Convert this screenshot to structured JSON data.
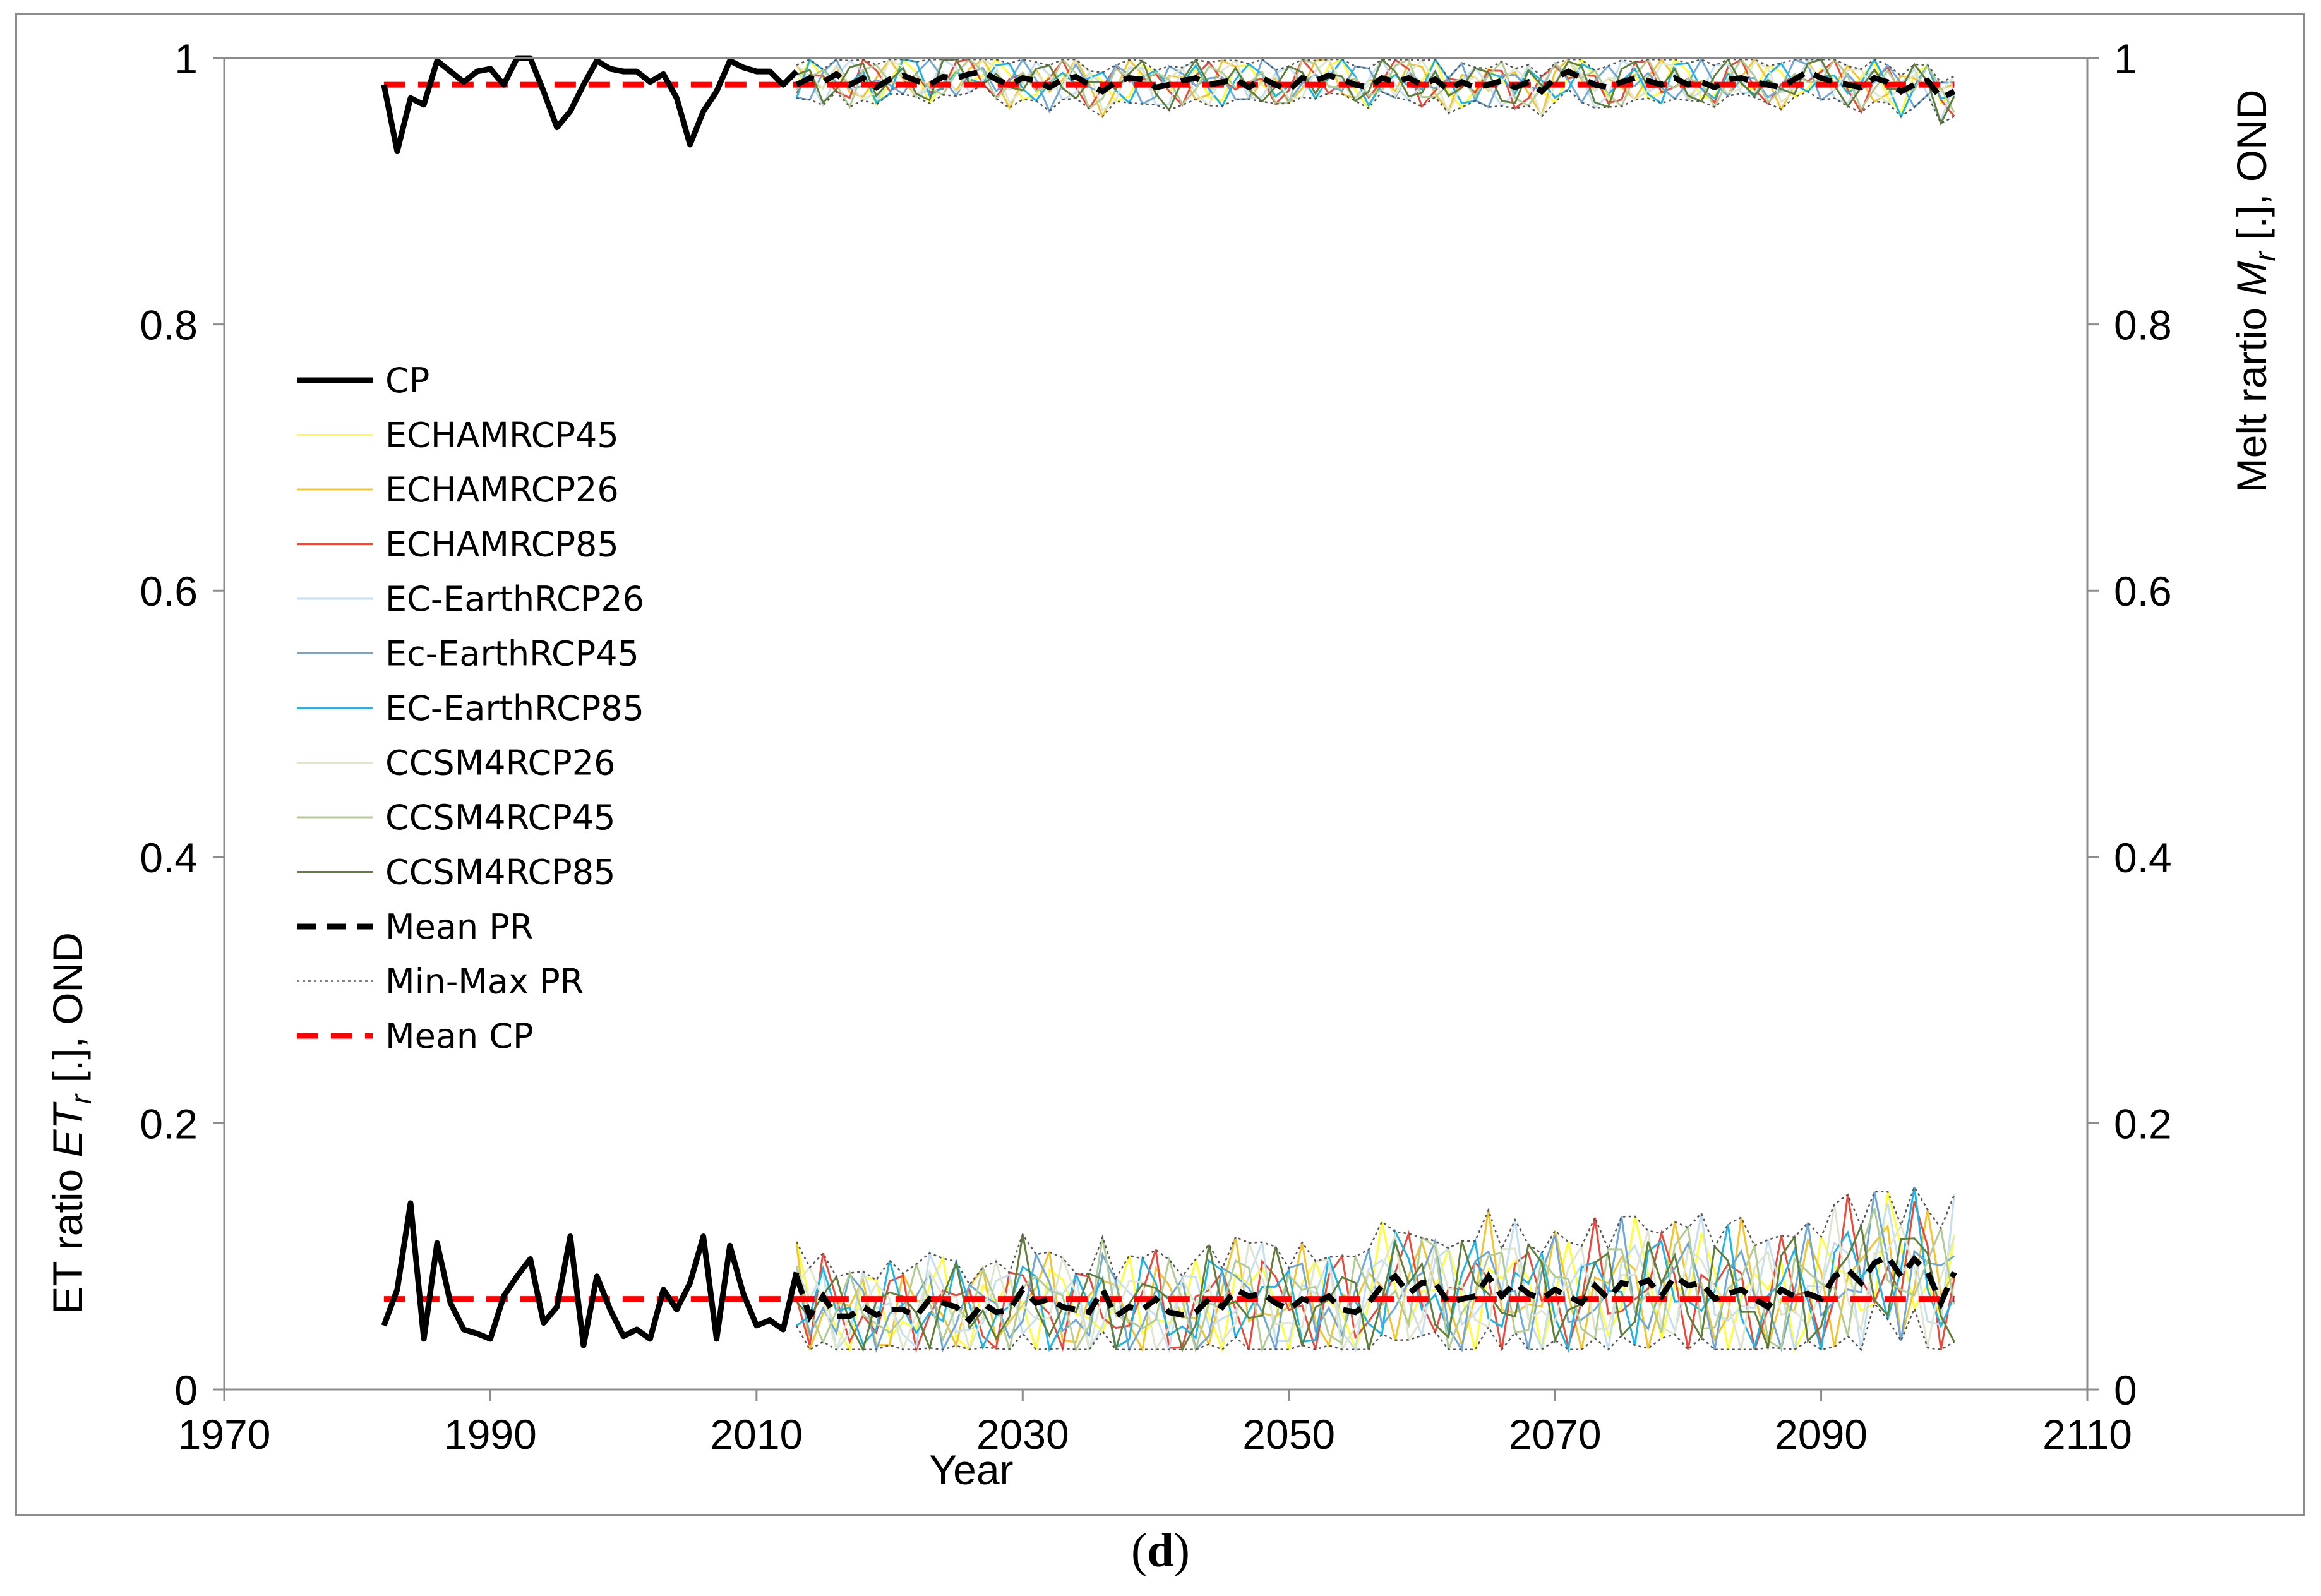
{
  "chart_data": {
    "type": "line",
    "caption": {
      "open": "(",
      "letter": "d",
      "close": ")"
    },
    "xlabel": "Year",
    "ylabel_left": {
      "main": "ET ratio ",
      "symbol": "ET",
      "sub": "r",
      "suffix": " [.], OND"
    },
    "ylabel_right": {
      "main": "Melt rartio ",
      "symbol": "M",
      "sub": "r",
      "suffix": " [.], OND"
    },
    "xlim": [
      1970,
      2110
    ],
    "ylim": [
      0,
      1
    ],
    "xticks": [
      1970,
      1990,
      2010,
      2030,
      2050,
      2070,
      2090,
      2110
    ],
    "yticks": [
      0,
      0.2,
      0.4,
      0.6,
      0.8,
      1
    ],
    "ytick_labels": [
      "0",
      "0.2",
      "0.4",
      "0.6",
      "0.8",
      "1"
    ],
    "legend": [
      {
        "label": "CP",
        "color": "#000000",
        "style": "solid-thick"
      },
      {
        "label": "ECHAMRCP45",
        "color": "#ffff33",
        "style": "solid"
      },
      {
        "label": "ECHAMRCP26",
        "color": "#f4c430",
        "style": "solid"
      },
      {
        "label": "ECHAMRCP85",
        "color": "#e84a3c",
        "style": "solid"
      },
      {
        "label": "EC-EarthRCP26",
        "color": "#c5dff0",
        "style": "solid"
      },
      {
        "label": "Ec-EarthRCP45",
        "color": "#6fa7d6",
        "style": "solid"
      },
      {
        "label": "EC-EarthRCP85",
        "color": "#1eb4e6",
        "style": "solid"
      },
      {
        "label": "CCSM4RCP26",
        "color": "#dfe6cf",
        "style": "solid"
      },
      {
        "label": "CCSM4RCP45",
        "color": "#b3cc96",
        "style": "solid"
      },
      {
        "label": "CCSM4RCP85",
        "color": "#5f7f3a",
        "style": "solid"
      },
      {
        "label": "Mean PR",
        "color": "#000000",
        "style": "dashed-thick"
      },
      {
        "label": "Min-Max PR",
        "color": "#555555",
        "style": "dotted"
      },
      {
        "label": "Mean CP",
        "color": "#ff0000",
        "style": "dashed-red"
      }
    ],
    "cp_years": [
      1982,
      2013
    ],
    "projection_years": [
      2013,
      2100
    ],
    "mean_cp": {
      "melt": 0.98,
      "et": 0.068
    },
    "cp_melt": [
      0.98,
      0.93,
      0.97,
      0.965,
      0.998,
      0.99,
      0.982,
      0.99,
      0.992,
      0.98,
      1.0,
      1.0,
      0.975,
      0.948,
      0.96,
      0.98,
      0.998,
      0.992,
      0.99,
      0.99,
      0.982,
      0.988,
      0.97,
      0.935,
      0.96,
      0.975,
      0.998,
      0.993,
      0.99,
      0.99,
      0.98,
      0.99
    ],
    "cp_et": [
      0.048,
      0.075,
      0.14,
      0.038,
      0.11,
      0.065,
      0.045,
      0.042,
      0.038,
      0.07,
      0.085,
      0.098,
      0.05,
      0.062,
      0.115,
      0.033,
      0.085,
      0.06,
      0.04,
      0.045,
      0.038,
      0.075,
      0.06,
      0.08,
      0.115,
      0.038,
      0.108,
      0.072,
      0.048,
      0.052,
      0.045,
      0.088
    ],
    "mean_pr_melt": [
      0.98,
      0.985,
      0.982,
      0.988,
      0.98,
      0.985,
      0.978,
      0.984,
      0.987,
      0.983,
      0.98,
      0.986,
      0.985,
      0.988,
      0.99,
      0.984,
      0.98,
      0.985,
      0.983,
      0.978,
      0.984,
      0.986,
      0.98,
      0.975,
      0.982,
      0.985,
      0.984,
      0.978,
      0.98,
      0.983,
      0.985,
      0.98,
      0.982,
      0.984,
      0.978,
      0.985,
      0.98,
      0.976,
      0.985,
      0.983,
      0.987,
      0.984,
      0.98,
      0.978,
      0.985,
      0.982,
      0.985,
      0.98,
      0.984,
      0.976,
      0.982,
      0.978,
      0.98,
      0.983,
      0.978,
      0.982,
      0.975,
      0.985,
      0.99,
      0.985,
      0.98,
      0.978,
      0.982,
      0.985,
      0.983,
      0.98,
      0.985,
      0.98,
      0.982,
      0.978,
      0.984,
      0.985,
      0.982,
      0.98,
      0.978,
      0.984,
      0.99,
      0.985,
      0.982,
      0.98,
      0.978,
      0.985,
      0.982,
      0.975,
      0.98,
      0.983,
      0.97,
      0.975
    ],
    "mean_pr_et": [
      0.085,
      0.055,
      0.07,
      0.055,
      0.055,
      0.062,
      0.056,
      0.06,
      0.06,
      0.055,
      0.068,
      0.065,
      0.062,
      0.052,
      0.065,
      0.058,
      0.06,
      0.075,
      0.065,
      0.068,
      0.062,
      0.06,
      0.058,
      0.075,
      0.055,
      0.062,
      0.06,
      0.068,
      0.058,
      0.056,
      0.058,
      0.068,
      0.062,
      0.075,
      0.07,
      0.072,
      0.065,
      0.06,
      0.068,
      0.065,
      0.07,
      0.06,
      0.058,
      0.065,
      0.078,
      0.085,
      0.072,
      0.08,
      0.08,
      0.065,
      0.068,
      0.07,
      0.085,
      0.07,
      0.08,
      0.072,
      0.068,
      0.075,
      0.07,
      0.065,
      0.078,
      0.068,
      0.08,
      0.078,
      0.082,
      0.07,
      0.085,
      0.078,
      0.08,
      0.068,
      0.072,
      0.075,
      0.068,
      0.062,
      0.075,
      0.07,
      0.072,
      0.068,
      0.085,
      0.09,
      0.08,
      0.095,
      0.1,
      0.085,
      0.098,
      0.088,
      0.065,
      0.088
    ]
  }
}
